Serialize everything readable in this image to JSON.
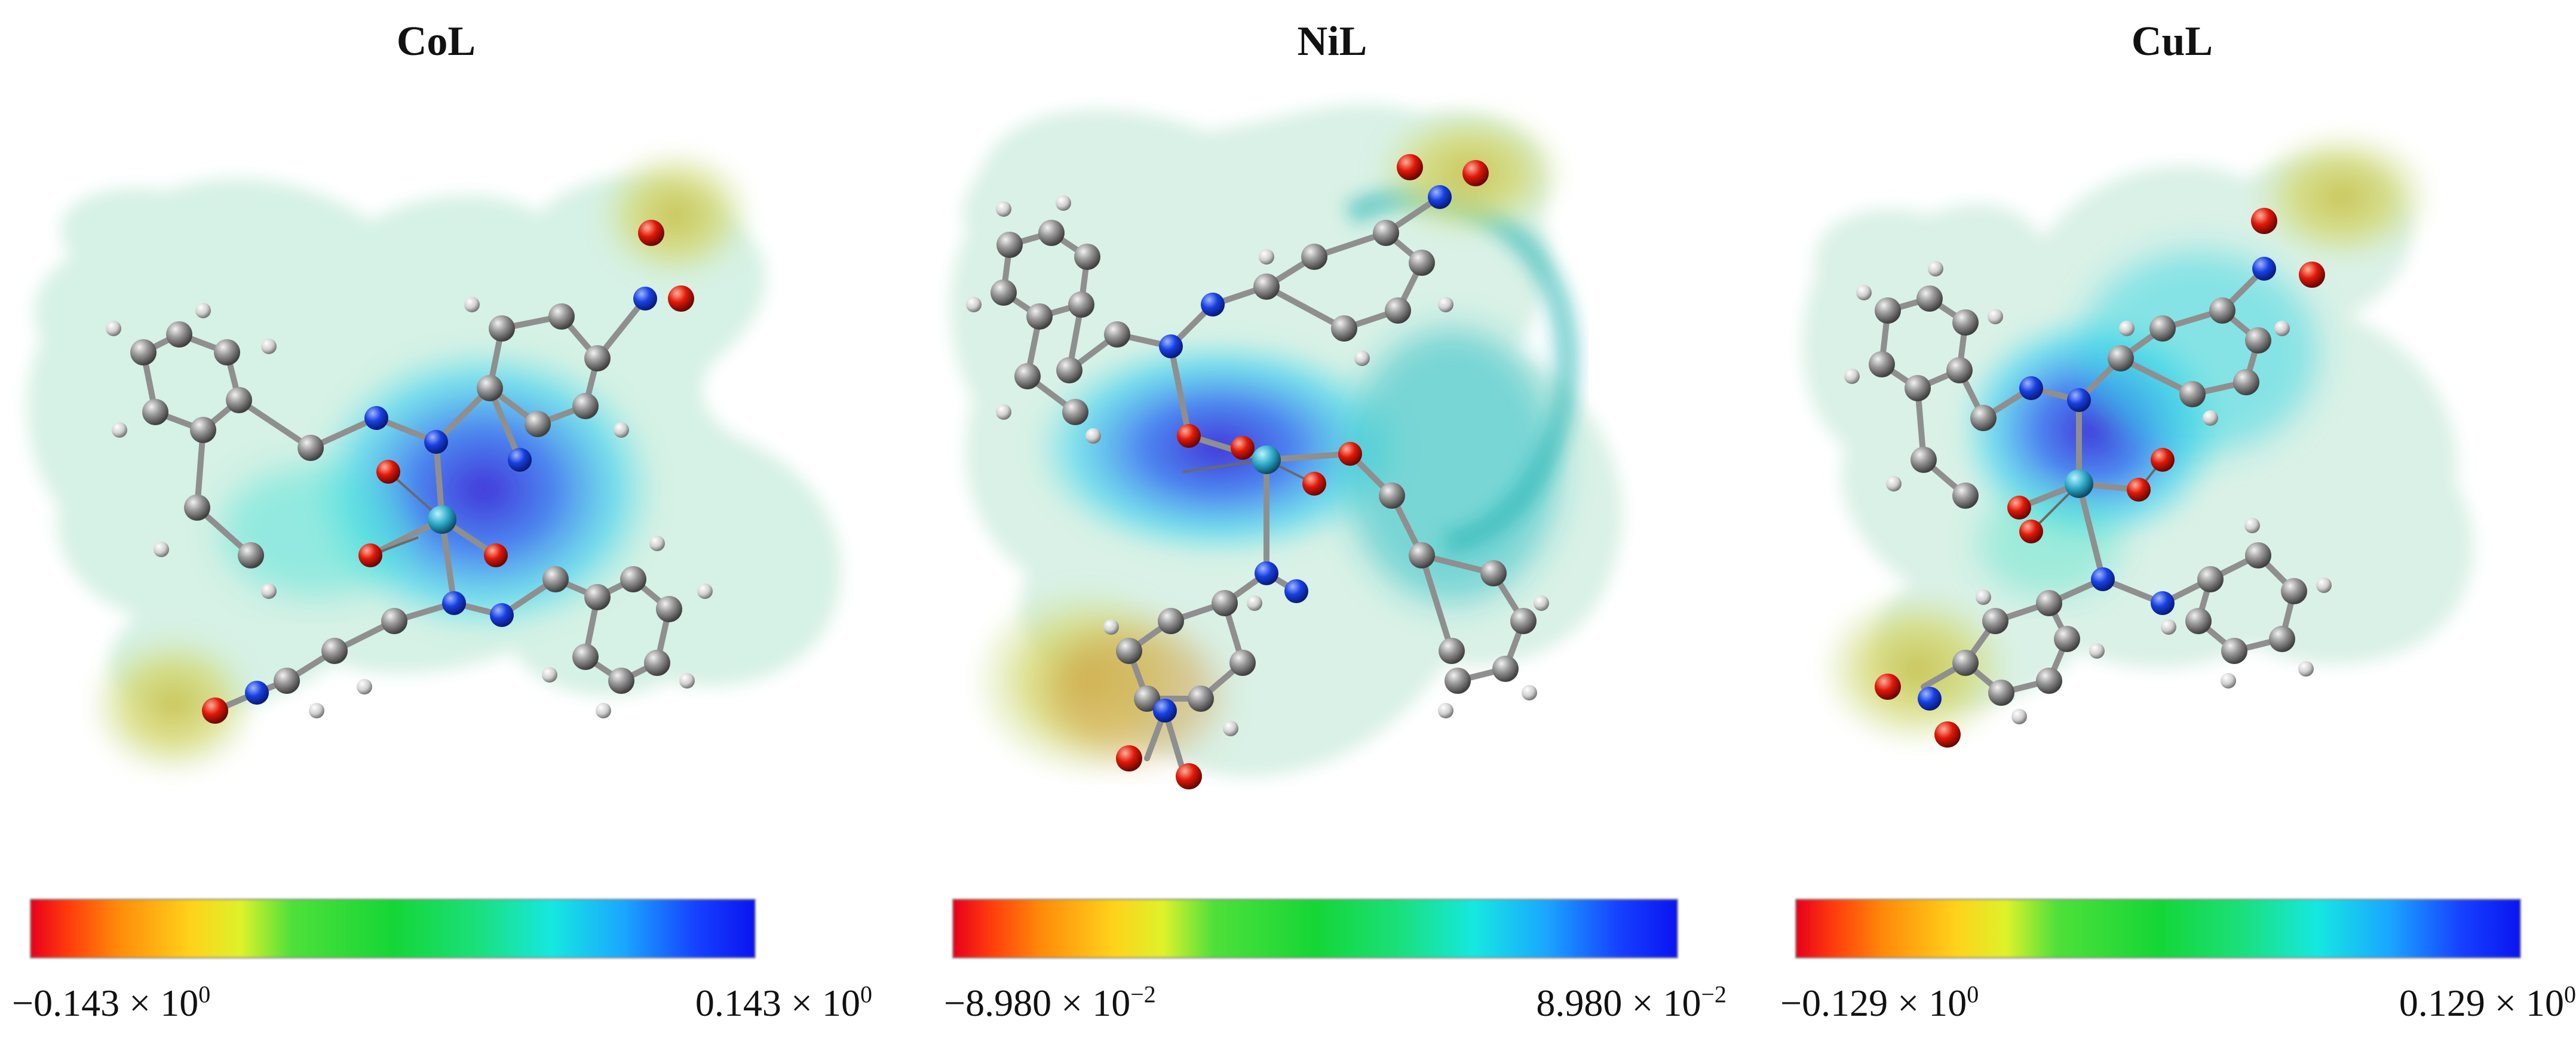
{
  "panels": [
    {
      "title": "CoL",
      "scale_min": {
        "mantissa": "−0.143 × 10",
        "exponent": "0"
      },
      "scale_max": {
        "mantissa": "0.143 × 10",
        "exponent": "0"
      }
    },
    {
      "title": "NiL",
      "scale_min": {
        "mantissa": "−8.980 × 10",
        "exponent": "−2"
      },
      "scale_max": {
        "mantissa": "8.980 × 10",
        "exponent": "−2"
      }
    },
    {
      "title": "CuL",
      "scale_min": {
        "mantissa": "−0.129 × 10",
        "exponent": "0"
      },
      "scale_max": {
        "mantissa": "0.129 × 10",
        "exponent": "0"
      }
    }
  ],
  "colorbar_colors": [
    "#e8001a",
    "#ff8a0a",
    "#ffd21a",
    "#15d636",
    "#16e8e0",
    "#1aa6ff",
    "#0a14f0"
  ]
}
